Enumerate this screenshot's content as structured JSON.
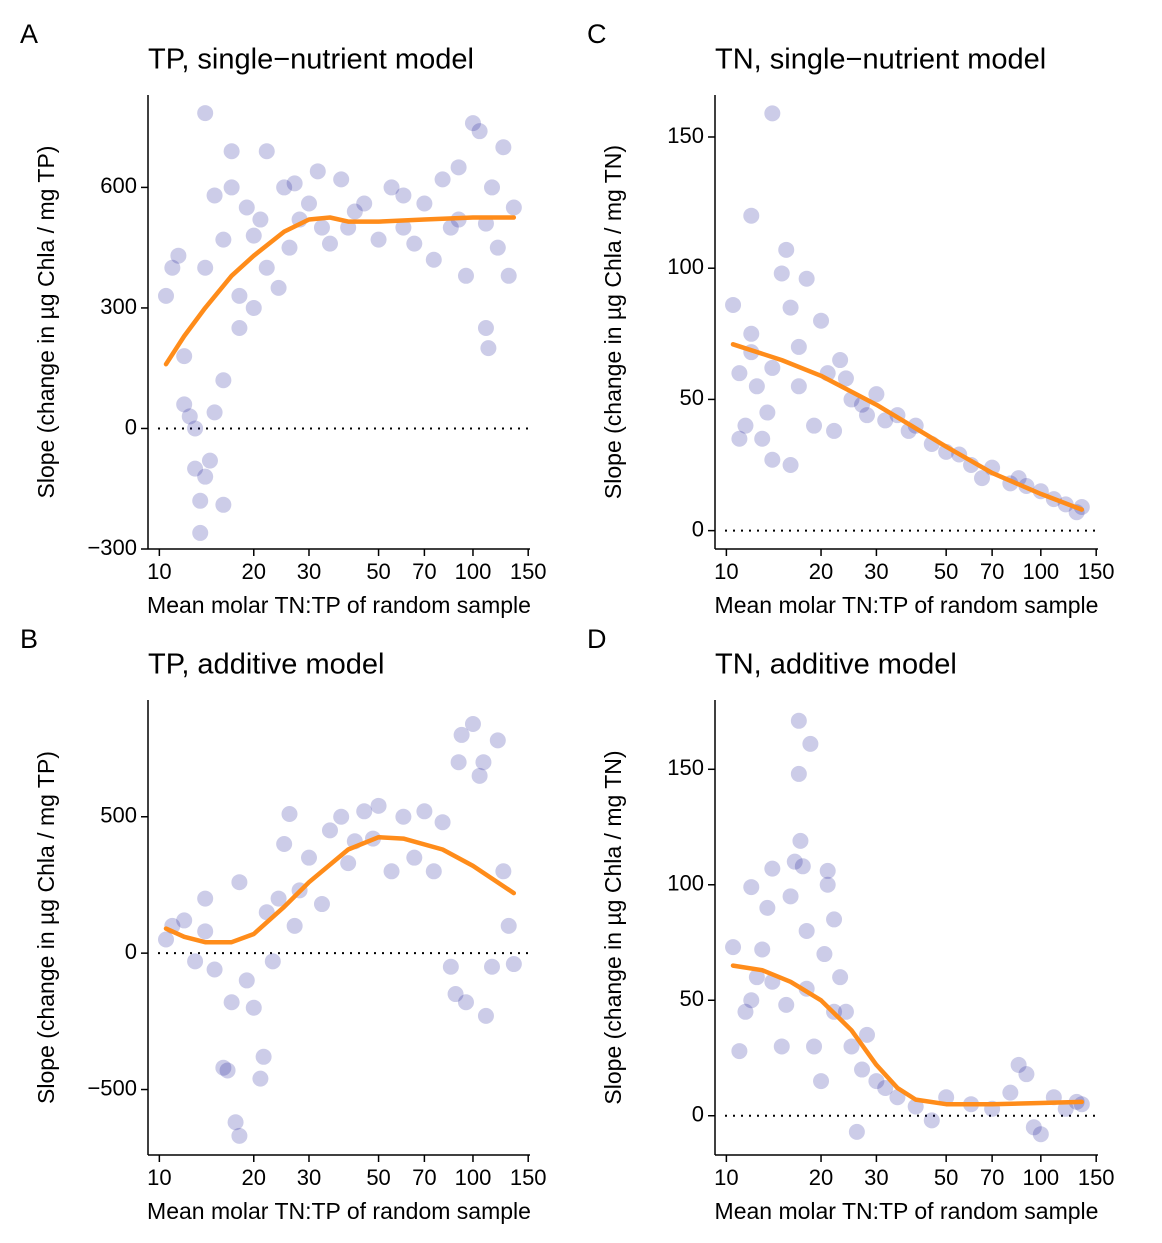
{
  "chart_data": [
    {
      "type": "scatter",
      "panel_label": "A",
      "title": "TP, single−nutrient model",
      "x_label": "Mean molar TN:TP of random sample",
      "y_label": "Slope (change in µg Chla / mg TP)",
      "log_x": true,
      "xlim": [
        9.2,
        152
      ],
      "xticks": [
        10,
        20,
        30,
        50,
        70,
        100,
        150
      ],
      "ylim": [
        -300,
        830
      ],
      "yticks": [
        {
          "value": -300,
          "label": "−300"
        },
        0,
        300,
        600
      ],
      "reference_line": 0,
      "points": {
        "color": "#00008b",
        "x": [
          14,
          10.5,
          11,
          11.5,
          12,
          12.5,
          13,
          13.5,
          13.5,
          14,
          14.5,
          15,
          16,
          13,
          12,
          17,
          22,
          16,
          18,
          20,
          15,
          17,
          19,
          20,
          22,
          24,
          25,
          27,
          30,
          32,
          35,
          38,
          40,
          45,
          50,
          55,
          60,
          65,
          70,
          75,
          80,
          85,
          90,
          95,
          100,
          105,
          110,
          112,
          115,
          120,
          125,
          130,
          135,
          18,
          21,
          26,
          28,
          33,
          42,
          60,
          90,
          110,
          14,
          16
        ],
        "y": [
          785,
          330,
          400,
          430,
          60,
          30,
          -100,
          -180,
          -260,
          -120,
          -80,
          40,
          -190,
          0,
          180,
          690,
          690,
          120,
          250,
          300,
          580,
          600,
          550,
          480,
          400,
          350,
          600,
          610,
          560,
          640,
          460,
          620,
          500,
          560,
          470,
          600,
          580,
          460,
          560,
          420,
          620,
          500,
          650,
          380,
          760,
          740,
          250,
          200,
          600,
          450,
          700,
          380,
          550,
          330,
          520,
          450,
          520,
          500,
          540,
          500,
          520,
          510,
          400,
          470
        ]
      },
      "smooth": {
        "color": "#ff8c1a",
        "x": [
          10.5,
          12,
          14,
          17,
          20,
          25,
          30,
          35,
          40,
          50,
          70,
          100,
          135
        ],
        "y": [
          160,
          230,
          300,
          380,
          430,
          490,
          520,
          525,
          515,
          515,
          520,
          525,
          525
        ]
      }
    },
    {
      "type": "scatter",
      "panel_label": "C",
      "title": "TN, single−nutrient model",
      "x_label": "Mean molar TN:TP of random sample",
      "y_label": "Slope (change in µg Chla / mg TN)",
      "log_x": true,
      "xlim": [
        9.2,
        152
      ],
      "xticks": [
        10,
        20,
        30,
        50,
        70,
        100,
        150
      ],
      "ylim": [
        -7,
        166
      ],
      "yticks": [
        0,
        50,
        100,
        150
      ],
      "reference_line": 0,
      "points": {
        "color": "#00008b",
        "x": [
          14,
          12,
          10.5,
          11,
          11.5,
          11,
          12,
          12.5,
          13,
          13.5,
          14,
          15,
          15.5,
          16,
          16,
          17,
          18,
          19,
          20,
          21,
          22,
          23,
          25,
          27,
          30,
          32,
          35,
          38,
          40,
          45,
          50,
          55,
          60,
          70,
          80,
          90,
          100,
          110,
          120,
          130,
          135,
          14,
          17,
          12,
          24,
          28,
          65,
          85
        ],
        "y": [
          159,
          120,
          86,
          60,
          40,
          35,
          75,
          55,
          35,
          45,
          27,
          98,
          107,
          25,
          85,
          70,
          96,
          40,
          80,
          60,
          38,
          65,
          50,
          48,
          52,
          42,
          44,
          38,
          40,
          33,
          30,
          29,
          25,
          24,
          18,
          17,
          15,
          12,
          10,
          7,
          9,
          62,
          55,
          68,
          58,
          44,
          20,
          20
        ]
      },
      "smooth": {
        "color": "#ff8c1a",
        "x": [
          10.5,
          15,
          20,
          30,
          40,
          50,
          70,
          100,
          135
        ],
        "y": [
          71,
          65,
          59,
          48,
          39,
          32,
          22,
          14,
          8
        ]
      }
    },
    {
      "type": "scatter",
      "panel_label": "B",
      "title": "TP, additive model",
      "x_label": "Mean molar TN:TP of random sample",
      "y_label": "Slope (change in µg Chla / mg TP)",
      "log_x": true,
      "xlim": [
        9.2,
        152
      ],
      "xticks": [
        10,
        20,
        30,
        50,
        70,
        100,
        150
      ],
      "ylim": [
        -740,
        928
      ],
      "yticks": [
        {
          "value": -500,
          "label": "−500"
        },
        0,
        500
      ],
      "reference_line": 0,
      "points": {
        "color": "#00008b",
        "x": [
          10.5,
          11,
          12,
          13,
          14,
          15,
          16,
          16.5,
          17,
          17.5,
          18,
          18,
          19,
          20,
          21,
          21.5,
          22,
          23,
          24,
          25,
          26,
          27,
          30,
          33,
          35,
          38,
          40,
          45,
          50,
          55,
          60,
          65,
          70,
          75,
          80,
          85,
          88,
          90,
          92,
          95,
          100,
          105,
          108,
          110,
          115,
          120,
          125,
          130,
          135,
          48,
          28,
          14,
          42
        ],
        "y": [
          50,
          100,
          120,
          -30,
          200,
          -60,
          -420,
          -430,
          -180,
          -620,
          -670,
          260,
          -100,
          -200,
          -460,
          -380,
          150,
          -30,
          200,
          400,
          510,
          100,
          350,
          180,
          450,
          500,
          330,
          520,
          540,
          300,
          500,
          350,
          520,
          300,
          480,
          -50,
          -150,
          700,
          800,
          -180,
          840,
          650,
          700,
          -230,
          -50,
          780,
          300,
          100,
          -40,
          420,
          230,
          80,
          410
        ]
      },
      "smooth": {
        "color": "#ff8c1a",
        "x": [
          10.5,
          12,
          14,
          17,
          20,
          25,
          30,
          40,
          50,
          60,
          80,
          100,
          135
        ],
        "y": [
          90,
          60,
          40,
          40,
          70,
          170,
          260,
          380,
          425,
          420,
          380,
          320,
          220
        ]
      }
    },
    {
      "type": "scatter",
      "panel_label": "D",
      "title": "TN, additive model",
      "x_label": "Mean molar TN:TP of random sample",
      "y_label": "Slope (change in µg Chla / mg TN)",
      "log_x": true,
      "xlim": [
        9.2,
        152
      ],
      "xticks": [
        10,
        20,
        30,
        50,
        70,
        100,
        150
      ],
      "ylim": [
        -17,
        180
      ],
      "yticks": [
        0,
        50,
        100,
        150
      ],
      "reference_line": 0,
      "points": {
        "color": "#00008b",
        "x": [
          10.5,
          11,
          11.5,
          12,
          12.5,
          13,
          13.5,
          14,
          15,
          15.5,
          16,
          16.5,
          17,
          17,
          17.2,
          17.5,
          18,
          18.5,
          19,
          20,
          20.5,
          21,
          21,
          22,
          23,
          24,
          25,
          26,
          27,
          28,
          30,
          32,
          35,
          40,
          45,
          50,
          60,
          70,
          80,
          85,
          90,
          95,
          100,
          110,
          120,
          130,
          135,
          14,
          18,
          22,
          12
        ],
        "y": [
          73,
          28,
          45,
          99,
          60,
          72,
          90,
          107,
          30,
          48,
          95,
          110,
          171,
          148,
          119,
          108,
          80,
          161,
          30,
          15,
          70,
          106,
          100,
          85,
          60,
          45,
          30,
          -7,
          20,
          35,
          15,
          12,
          8,
          4,
          -2,
          8,
          5,
          3,
          10,
          22,
          18,
          -5,
          -8,
          8,
          3,
          6,
          5,
          58,
          55,
          45,
          50
        ]
      },
      "smooth": {
        "color": "#ff8c1a",
        "x": [
          10.5,
          13,
          16,
          20,
          25,
          30,
          35,
          40,
          50,
          70,
          100,
          135
        ],
        "y": [
          65,
          63,
          58,
          50,
          37,
          22,
          12,
          7,
          5,
          5,
          5.5,
          6
        ]
      }
    }
  ]
}
